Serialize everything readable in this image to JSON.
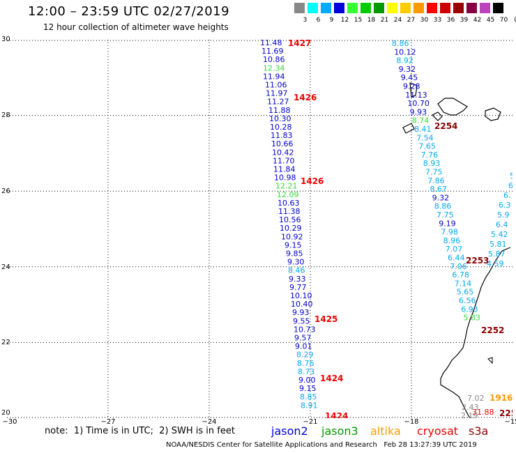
{
  "header": {
    "title": "12:00 – 23:59 UTC 02/27/2019",
    "subtitle": "12 hour collection of altimeter wave heights"
  },
  "legend": {
    "unit": "(ft)",
    "items": [
      {
        "label": "3",
        "color": "#888888"
      },
      {
        "label": "6",
        "color": "#00ffff"
      },
      {
        "label": "9",
        "color": "#00aaff"
      },
      {
        "label": "12",
        "color": "#0000dd"
      },
      {
        "label": "15",
        "color": "#33ff33"
      },
      {
        "label": "18",
        "color": "#00cc00"
      },
      {
        "label": "21",
        "color": "#009900"
      },
      {
        "label": "24",
        "color": "#ffff00"
      },
      {
        "label": "27",
        "color": "#ffcc00"
      },
      {
        "label": "30",
        "color": "#ff9900"
      },
      {
        "label": "33",
        "color": "#ff0000"
      },
      {
        "label": "36",
        "color": "#cc0000"
      },
      {
        "label": "39",
        "color": "#990000"
      },
      {
        "label": "42",
        "color": "#880044"
      },
      {
        "label": "45",
        "color": "#bb44bb"
      },
      {
        "label": "70",
        "color": "#000000"
      }
    ]
  },
  "map": {
    "lat_labels": [
      "30",
      "28",
      "26",
      "24",
      "22",
      "20"
    ],
    "lon_labels": [
      "−30",
      "−27",
      "−24",
      "−21",
      "−18",
      "−15"
    ],
    "colors": {
      "jason2": "#0000cc",
      "light": "#00aaee",
      "green": "#33dd33",
      "red": "#ee0000",
      "darkred": "#880000",
      "gray": "#888888",
      "orange": "#ff9900"
    },
    "track_a": [
      {
        "v": "11.48",
        "c": "jason2"
      },
      {
        "v": "11.69",
        "c": "jason2"
      },
      {
        "v": "10.86",
        "c": "jason2"
      },
      {
        "v": "12.34",
        "c": "green"
      },
      {
        "v": "11.94",
        "c": "jason2"
      },
      {
        "v": "11.06",
        "c": "jason2"
      },
      {
        "v": "11.97",
        "c": "jason2"
      },
      {
        "v": "11.27",
        "c": "jason2"
      },
      {
        "v": "11.88",
        "c": "jason2"
      },
      {
        "v": "10.30",
        "c": "jason2"
      },
      {
        "v": "10.28",
        "c": "jason2"
      },
      {
        "v": "11.83",
        "c": "jason2"
      },
      {
        "v": "10.66",
        "c": "jason2"
      },
      {
        "v": "10.42",
        "c": "jason2"
      },
      {
        "v": "11.70",
        "c": "jason2"
      },
      {
        "v": "11.84",
        "c": "jason2"
      },
      {
        "v": "10.98",
        "c": "jason2"
      },
      {
        "v": "12.21",
        "c": "green"
      },
      {
        "v": "12.09",
        "c": "green"
      },
      {
        "v": "10.63",
        "c": "jason2"
      },
      {
        "v": "11.38",
        "c": "jason2"
      },
      {
        "v": "10.56",
        "c": "jason2"
      },
      {
        "v": "10.29",
        "c": "jason2"
      },
      {
        "v": "10.92",
        "c": "jason2"
      },
      {
        "v": "9.15",
        "c": "jason2"
      },
      {
        "v": "9.85",
        "c": "jason2"
      },
      {
        "v": "9.30",
        "c": "jason2"
      },
      {
        "v": "8.46",
        "c": "light"
      },
      {
        "v": "9.33",
        "c": "jason2"
      },
      {
        "v": "9.77",
        "c": "jason2"
      },
      {
        "v": "10.10",
        "c": "jason2"
      },
      {
        "v": "10.40",
        "c": "jason2"
      },
      {
        "v": "9.93",
        "c": "jason2"
      },
      {
        "v": "9.55",
        "c": "jason2"
      },
      {
        "v": "10.73",
        "c": "jason2"
      },
      {
        "v": "9.57",
        "c": "jason2"
      },
      {
        "v": "9.01",
        "c": "jason2"
      },
      {
        "v": "8.29",
        "c": "light"
      },
      {
        "v": "8.76",
        "c": "light"
      },
      {
        "v": "8.73",
        "c": "light"
      },
      {
        "v": "9.00",
        "c": "jason2"
      },
      {
        "v": "9.15",
        "c": "jason2"
      },
      {
        "v": "8.85",
        "c": "light"
      },
      {
        "v": "8.91",
        "c": "light"
      }
    ],
    "track_a_times": [
      {
        "v": "1427",
        "c": "red"
      },
      {
        "v": "1426",
        "c": "red"
      },
      {
        "v": "1426",
        "c": "red"
      },
      {
        "v": "1425",
        "c": "red"
      },
      {
        "v": "1424",
        "c": "red"
      },
      {
        "v": "1424",
        "c": "red"
      }
    ],
    "track_b": [
      {
        "v": "8.86",
        "c": "light"
      },
      {
        "v": "10.12",
        "c": "jason2"
      },
      {
        "v": "8.92",
        "c": "light"
      },
      {
        "v": "9.32",
        "c": "jason2"
      },
      {
        "v": "9.45",
        "c": "jason2"
      },
      {
        "v": "9.28",
        "c": "jason2"
      },
      {
        "v": "11.13",
        "c": "jason2"
      },
      {
        "v": "10.70",
        "c": "jason2"
      },
      {
        "v": "9.93",
        "c": "jason2"
      },
      {
        "v": "8.74",
        "c": "green"
      },
      {
        "v": "8.41",
        "c": "light"
      },
      {
        "v": "7.54",
        "c": "light"
      },
      {
        "v": "7.65",
        "c": "light"
      },
      {
        "v": "7.76",
        "c": "light"
      },
      {
        "v": "8.93",
        "c": "light"
      },
      {
        "v": "7.75",
        "c": "light"
      },
      {
        "v": "7.86",
        "c": "light"
      },
      {
        "v": "8.67",
        "c": "light"
      },
      {
        "v": "9.32",
        "c": "jason2"
      },
      {
        "v": "8.86",
        "c": "light"
      },
      {
        "v": "7.75",
        "c": "light"
      },
      {
        "v": "9.19",
        "c": "jason2"
      },
      {
        "v": "7.98",
        "c": "light"
      },
      {
        "v": "8.96",
        "c": "light"
      },
      {
        "v": "7.07",
        "c": "light"
      },
      {
        "v": "6.44",
        "c": "light"
      },
      {
        "v": "7.06",
        "c": "light"
      },
      {
        "v": "6.78",
        "c": "light"
      },
      {
        "v": "7.14",
        "c": "light"
      },
      {
        "v": "5.65",
        "c": "light"
      },
      {
        "v": "6.56",
        "c": "light"
      },
      {
        "v": "6.93",
        "c": "light"
      },
      {
        "v": "5.83",
        "c": "green"
      }
    ],
    "track_b_times": [
      {
        "v": "2254",
        "c": "darkred"
      },
      {
        "v": "2253",
        "c": "darkred"
      },
      {
        "v": "2252",
        "c": "darkred"
      }
    ],
    "track_c": [
      {
        "v": "5",
        "c": "light"
      },
      {
        "v": "6",
        "c": "light"
      },
      {
        "v": "6.",
        "c": "light"
      },
      {
        "v": "6.3",
        "c": "light"
      },
      {
        "v": "5.9",
        "c": "light"
      },
      {
        "v": "6.4",
        "c": "light"
      },
      {
        "v": "5.42",
        "c": "light"
      },
      {
        "v": "5.81",
        "c": "light"
      },
      {
        "v": "5.87",
        "c": "light"
      },
      {
        "v": "4.59",
        "c": "light"
      }
    ],
    "sw_corner": [
      {
        "v": "7.02",
        "c": "gray"
      },
      {
        "v": "2.43",
        "c": "gray"
      },
      {
        "v": "2.19",
        "c": "gray"
      },
      {
        "v": "31.88",
        "c": "red"
      }
    ],
    "sw_times": [
      {
        "v": "1916",
        "c": "orange"
      },
      {
        "v": "225",
        "c": "darkred"
      }
    ]
  },
  "note": "note:  1) Time is in UTC;  2) SWH is in feet",
  "satellites": [
    {
      "name": "jason2",
      "color": "#0000dd"
    },
    {
      "name": "jason3",
      "color": "#009900"
    },
    {
      "name": "altika",
      "color": "#ff9900"
    },
    {
      "name": "cryosat",
      "color": "#ee0000"
    },
    {
      "name": "s3a",
      "color": "#880000"
    }
  ],
  "footer": {
    "credit": "NOAA/NESDIS Center for Satellite Applications and Research",
    "timestamp": "Feb 28 13:27:39 UTC 2019"
  }
}
